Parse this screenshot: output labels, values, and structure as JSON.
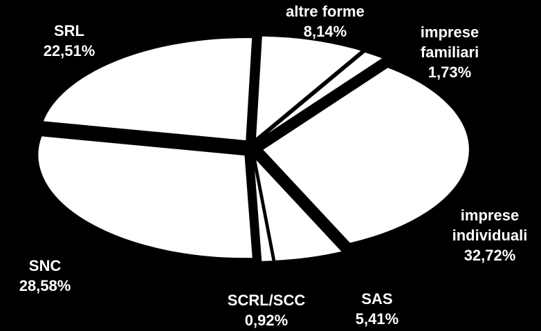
{
  "chart_data": {
    "type": "pie",
    "categories": [
      "altre forme",
      "imprese familiari",
      "imprese individuali",
      "SAS",
      "SCRL/SCC",
      "SNC",
      "SRL"
    ],
    "values": [
      8.14,
      1.73,
      32.72,
      5.41,
      0.92,
      28.58,
      22.51
    ],
    "value_labels": [
      "8,14%",
      "1,73%",
      "32,72%",
      "5,41%",
      "0,92%",
      "28,58%",
      "22,51%"
    ],
    "color": "#ffffff"
  }
}
